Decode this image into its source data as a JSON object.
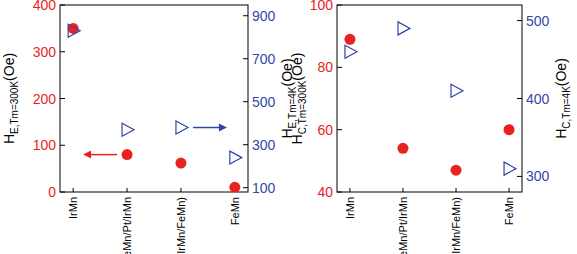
{
  "chart_data": [
    {
      "type": "scatter",
      "categories": [
        "IrMn",
        "FeMn/Pt/IrMn",
        "FeMn/Pt/(IrMn/FeMn)",
        "FeMn"
      ],
      "ylabel": "HE,Tm=300K(Oe)",
      "y2label": "HE,Tm=4K(Oe)",
      "ylim": [
        0,
        400
      ],
      "yticks": [
        0,
        100,
        200,
        300,
        400
      ],
      "y2lim": [
        80,
        950
      ],
      "y2ticks": [
        100,
        300,
        500,
        700,
        900
      ],
      "grid": false,
      "series": [
        {
          "color": "#e8231f",
          "marker": "circle",
          "values": [
            350,
            80,
            62,
            10
          ]
        },
        {
          "color": "#3346a8",
          "marker": "triangle-right-open",
          "axis": "y2",
          "values": [
            830,
            370,
            380,
            240
          ]
        }
      ]
    },
    {
      "type": "scatter",
      "categories": [
        "IrMn",
        "FeMn/Pt/IrMn",
        "FeMn/Pt/(IrMn/FeMn)",
        "FeMn"
      ],
      "ylabel": "HC,Tm=300K(Oe)",
      "y2label": "HC,Tm=4K(Oe)",
      "ylim": [
        40,
        100
      ],
      "yticks": [
        40,
        60,
        80,
        100
      ],
      "y2lim": [
        280,
        520
      ],
      "y2ticks": [
        300,
        400,
        500
      ],
      "grid": false,
      "series": [
        {
          "color": "#e8231f",
          "marker": "circle",
          "values": [
            89,
            54,
            47,
            60
          ]
        },
        {
          "color": "#3346a8",
          "marker": "triangle-right-open",
          "axis": "y2",
          "values": [
            460,
            490,
            410,
            310
          ]
        }
      ]
    }
  ]
}
